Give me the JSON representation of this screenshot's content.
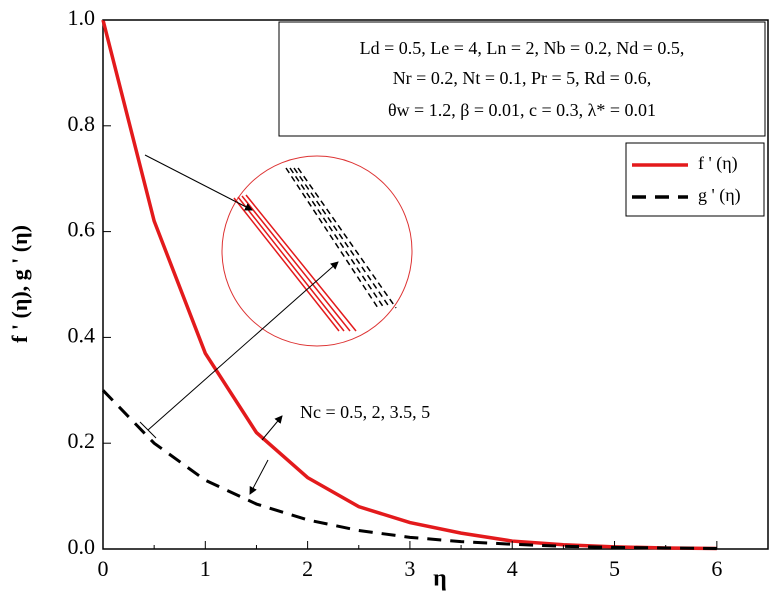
{
  "chart_data": {
    "type": "line",
    "xlabel": "η",
    "ylabel": "f ' (η), g ' (η)",
    "x": [
      0,
      0.5,
      1,
      1.5,
      2,
      2.5,
      3,
      3.5,
      4,
      4.5,
      5,
      5.5,
      6
    ],
    "series": [
      {
        "name": "f ' (η)",
        "color": "#e31a1c",
        "dash": "solid",
        "values": [
          1.0,
          0.62,
          0.37,
          0.22,
          0.135,
          0.08,
          0.05,
          0.03,
          0.015,
          0.008,
          0.004,
          0.002,
          0.001
        ]
      },
      {
        "name": "g ' (η)",
        "color": "#000000",
        "dash": "dashed",
        "values": [
          0.3,
          0.2,
          0.13,
          0.085,
          0.055,
          0.035,
          0.022,
          0.014,
          0.009,
          0.005,
          0.003,
          0.002,
          0.001
        ]
      }
    ],
    "xlim": [
      0,
      6.5
    ],
    "xticks": [
      0,
      1,
      2,
      3,
      4,
      5,
      6
    ],
    "ylim": [
      0,
      1.0
    ],
    "yticks": [
      {
        "value": 0,
        "label": "0.0"
      },
      0.2,
      0.4,
      0.6,
      0.8,
      {
        "value": 1.0,
        "label": "1.0"
      }
    ],
    "annotation": "Nc = 0.5, 2, 3.5, 5",
    "info_lines": [
      "Ld = 0.5, Le = 4, Ln = 2, Nb = 0.2, Nd = 0.5,",
      "Nr = 0.2, Nt = 0.1, Pr = 5, Rd = 0.6,",
      "θw = 1.2, β = 0.01, c = 0.3, λ* = 0.01"
    ],
    "legend": "upper right"
  }
}
